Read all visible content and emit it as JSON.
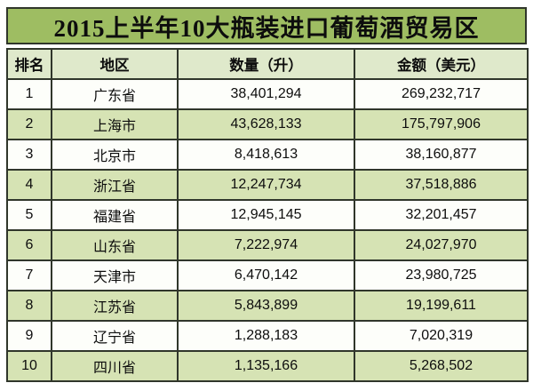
{
  "title": "2015上半年10大瓶装进口葡萄酒贸易区",
  "table": {
    "headers": [
      "排名",
      "地区",
      "数量（升）",
      "金额（美元）"
    ],
    "rows": [
      {
        "rank": "1",
        "region": "广东省",
        "quantity": "38,401,294",
        "amount": "269,232,717"
      },
      {
        "rank": "2",
        "region": "上海市",
        "quantity": "43,628,133",
        "amount": "175,797,906"
      },
      {
        "rank": "3",
        "region": "北京市",
        "quantity": "8,418,613",
        "amount": "38,160,877"
      },
      {
        "rank": "4",
        "region": "浙江省",
        "quantity": "12,247,734",
        "amount": "37,518,886"
      },
      {
        "rank": "5",
        "region": "福建省",
        "quantity": "12,945,145",
        "amount": "32,201,457"
      },
      {
        "rank": "6",
        "region": "山东省",
        "quantity": "7,222,974",
        "amount": "24,027,970"
      },
      {
        "rank": "7",
        "region": "天津市",
        "quantity": "6,470,142",
        "amount": "23,980,725"
      },
      {
        "rank": "8",
        "region": "江苏省",
        "quantity": "5,843,899",
        "amount": "19,199,611"
      },
      {
        "rank": "9",
        "region": "辽宁省",
        "quantity": "1,288,183",
        "amount": "7,020,319"
      },
      {
        "rank": "10",
        "region": "四川省",
        "quantity": "1,135,166",
        "amount": "5,268,502"
      }
    ]
  },
  "colors": {
    "title_bg": "#9ebd62",
    "header_bg": "#dfe9cb",
    "even_row_bg": "#d6e3b4",
    "odd_row_bg": "#fdfefa",
    "border_color": "#30362b",
    "text_color": "#0d0d0d",
    "page_bg": "#ffffff"
  }
}
